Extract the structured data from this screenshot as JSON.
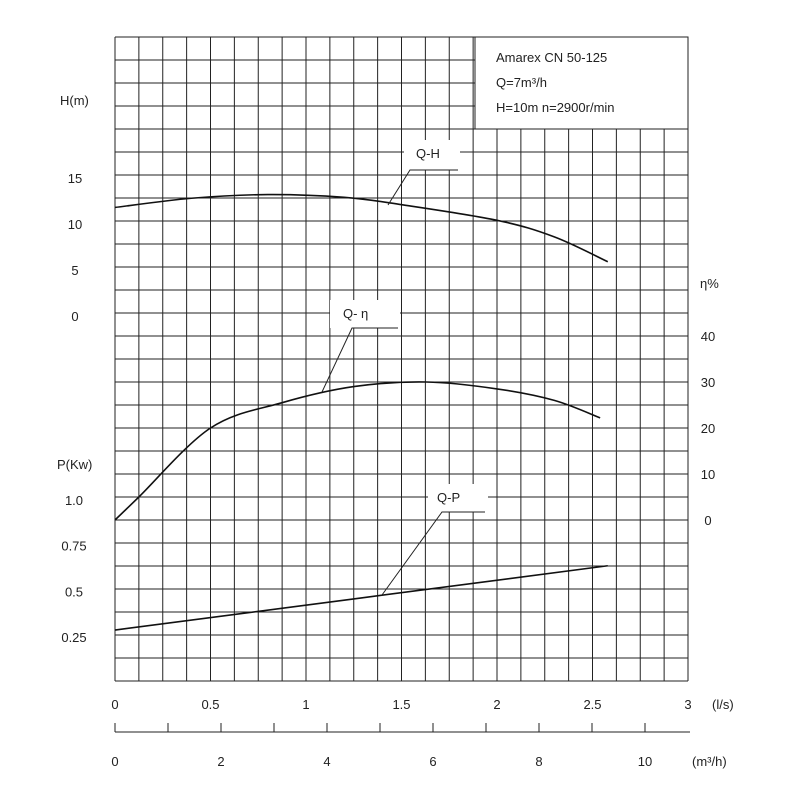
{
  "chart_data": {
    "type": "line",
    "title_box": {
      "line1": "Amarex CN 50-125",
      "line2": "Q=7m³/h",
      "line3": "H=10m  n=2900r/min"
    },
    "x_axes": [
      {
        "unit": "(l/s)",
        "range": [
          0,
          3
        ],
        "ticks": [
          0,
          0.5,
          1,
          1.5,
          2,
          2.5,
          3
        ],
        "tick_labels": [
          "0",
          "0.5",
          "1",
          "1.5",
          "2",
          "2.5",
          "3"
        ]
      },
      {
        "unit": "(m³/h)",
        "range": [
          0,
          10.8
        ],
        "minor_ticks": [
          0,
          1,
          2,
          3,
          4,
          5,
          6,
          7,
          8,
          9,
          10
        ],
        "tick_labels": [
          "0",
          "2",
          "4",
          "6",
          "8",
          "10"
        ],
        "label_values": [
          0,
          2,
          4,
          6,
          8,
          10
        ]
      }
    ],
    "y_axes": {
      "head": {
        "label": "H(m)",
        "tick_labels": [
          "15",
          "10",
          "5",
          "0"
        ],
        "tick_values": [
          15,
          10,
          5,
          0
        ]
      },
      "efficiency": {
        "label": "η%",
        "tick_labels": [
          "40",
          "30",
          "20",
          "10",
          "0"
        ],
        "tick_values": [
          40,
          30,
          20,
          10,
          0
        ]
      },
      "power": {
        "label": "P(Kw)",
        "tick_labels": [
          "1.0",
          "0.75",
          "0.5",
          "0.25"
        ],
        "tick_values": [
          1.0,
          0.75,
          0.5,
          0.25
        ]
      }
    },
    "grid": true,
    "series": [
      {
        "name": "Q-H",
        "axis": "head",
        "x": [
          0,
          0.4,
          0.8,
          1.2,
          1.5,
          2.0,
          2.3,
          2.58
        ],
        "y": [
          11.8,
          12.8,
          13.2,
          12.9,
          12.1,
          10.4,
          8.6,
          5.9
        ]
      },
      {
        "name": "Q- η",
        "axis": "efficiency",
        "x": [
          0,
          0.125,
          0.5,
          0.875,
          1.25,
          1.63,
          2.0,
          2.3,
          2.54
        ],
        "y": [
          0,
          5,
          20,
          25.5,
          29,
          30,
          28.5,
          26,
          22.2
        ]
      },
      {
        "name": "Q-P",
        "axis": "power",
        "x": [
          0,
          2.58
        ],
        "y": [
          0.288,
          0.64
        ]
      }
    ]
  }
}
